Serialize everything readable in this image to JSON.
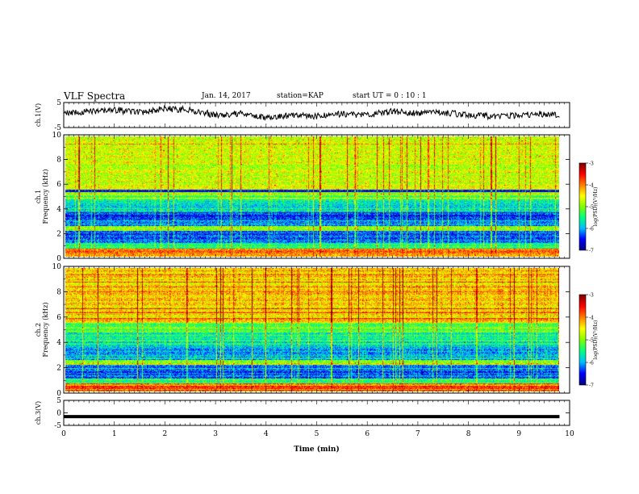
{
  "header": {
    "title": "VLF Spectra",
    "date": "Jan. 14, 2017",
    "station": "station=KAP",
    "start": "start  UT =  0 : 10 : 1"
  },
  "chart_data": [
    {
      "type": "line",
      "panel": "ch1-waveform",
      "ylabel": "ch.1(V)",
      "xlim": [
        0,
        10
      ],
      "ylim": [
        -5,
        5
      ],
      "yticks": [
        "5",
        "-5"
      ],
      "series": [
        {
          "x": [
            0,
            0.5,
            1,
            1.5,
            2,
            2.5,
            3,
            3.5,
            4,
            4.5,
            5,
            5.5,
            6,
            6.5,
            7,
            7.5,
            8,
            8.5,
            9,
            9.5,
            9.8
          ],
          "values": [
            0.5,
            1.5,
            2,
            1,
            2.5,
            2,
            0,
            0.5,
            -1,
            0,
            -0.5,
            0.5,
            0,
            1.5,
            0.5,
            1,
            0,
            -0.5,
            0,
            0.5,
            0
          ]
        }
      ]
    },
    {
      "type": "heatmap",
      "panel": "ch1-spectrogram",
      "ylabel": "ch.1\nFrequency (kHz)",
      "xlim": [
        0,
        10
      ],
      "ylim": [
        0,
        10
      ],
      "yticks": [
        "0",
        "2",
        "4",
        "6",
        "8",
        "10"
      ],
      "colorbar": {
        "label": "log(PSD)(V²/Hz)",
        "range": [
          -7,
          -3
        ],
        "ticks": [
          "-3",
          "-4",
          "-5",
          "-6",
          "-7"
        ]
      }
    },
    {
      "type": "heatmap",
      "panel": "ch2-spectrogram",
      "ylabel": "ch.2\nFrequency (kHz)",
      "xlim": [
        0,
        10
      ],
      "ylim": [
        0,
        10
      ],
      "yticks": [
        "0",
        "2",
        "4",
        "6",
        "8",
        "10"
      ],
      "colorbar": {
        "label": "log(PSD)(V²/Hz)",
        "range": [
          -7,
          -3
        ],
        "ticks": [
          "-3",
          "-4",
          "-5",
          "-6",
          "-7"
        ]
      }
    },
    {
      "type": "line",
      "panel": "ch3-waveform",
      "ylabel": "ch.3(V)",
      "xlim": [
        0,
        10
      ],
      "ylim": [
        -5,
        5
      ],
      "yticks": [
        "5",
        "0",
        "-5"
      ],
      "series": [
        {
          "x": [
            0,
            9.8
          ],
          "values": [
            -1.5,
            -1.5
          ]
        }
      ],
      "xlabel": "Time (min)",
      "xticks": [
        "0",
        "1",
        "2",
        "3",
        "4",
        "5",
        "6",
        "7",
        "8",
        "9",
        "10"
      ]
    }
  ],
  "colors": {
    "colormap": [
      "#00007f",
      "#0000ff",
      "#00bfff",
      "#00ff7f",
      "#7fff00",
      "#ffff00",
      "#ff7f00",
      "#ff0000",
      "#7f0000"
    ],
    "line": "#000000",
    "background": "#ffffff"
  }
}
